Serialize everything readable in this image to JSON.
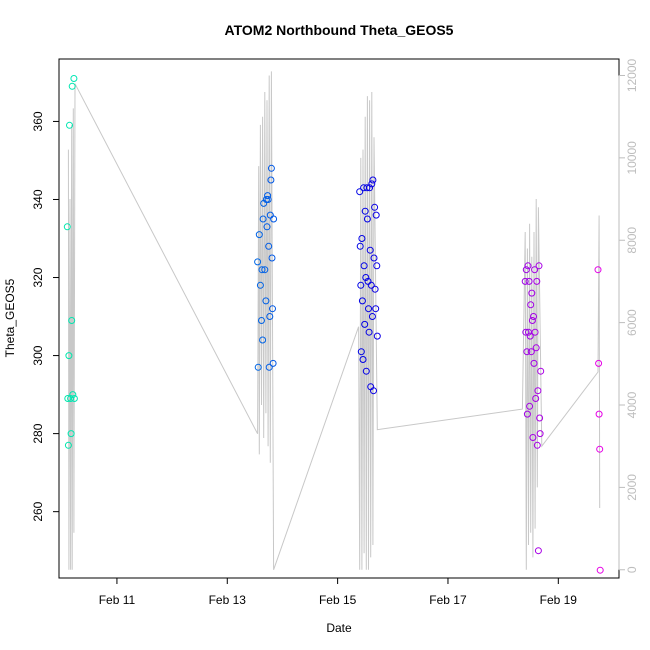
{
  "chart_data": {
    "type": "scatter",
    "title": "ATOM2 Northbound Theta_GEOS5",
    "xlabel": "Date",
    "ylabel": "Theta_GEOS5",
    "x_ticks": [
      {
        "day": 11,
        "label": "Feb 11"
      },
      {
        "day": 13,
        "label": "Feb 13"
      },
      {
        "day": 15,
        "label": "Feb 15"
      },
      {
        "day": 17,
        "label": "Feb 17"
      },
      {
        "day": 19,
        "label": "Feb 19"
      }
    ],
    "xlim": [
      9.95,
      20.1
    ],
    "ylim": [
      243,
      376
    ],
    "y_ticks": [
      260,
      280,
      300,
      320,
      340,
      360
    ],
    "y2lim": [
      -200,
      12400
    ],
    "y2_ticks": [
      0,
      2000,
      4000,
      6000,
      8000,
      10000,
      12000
    ],
    "y2_color": "#bdbdbd",
    "line_color": "#c8c8c8",
    "altitude_trace": [
      [
        10.12,
        10200
      ],
      [
        10.13,
        0
      ],
      [
        10.15,
        9000
      ],
      [
        10.16,
        0
      ],
      [
        10.18,
        10800
      ],
      [
        10.19,
        0
      ],
      [
        10.21,
        11200
      ],
      [
        10.22,
        900
      ],
      [
        10.24,
        11800
      ],
      [
        13.55,
        3300
      ],
      [
        13.57,
        9800
      ],
      [
        13.58,
        2800
      ],
      [
        13.6,
        10800
      ],
      [
        13.62,
        4000
      ],
      [
        13.64,
        11000
      ],
      [
        13.66,
        3200
      ],
      [
        13.68,
        11600
      ],
      [
        13.7,
        3800
      ],
      [
        13.72,
        11400
      ],
      [
        13.74,
        3000
      ],
      [
        13.76,
        12000
      ],
      [
        13.78,
        2600
      ],
      [
        13.8,
        12100
      ],
      [
        13.84,
        0
      ],
      [
        15.38,
        5900
      ],
      [
        15.4,
        0
      ],
      [
        15.42,
        10000
      ],
      [
        15.44,
        0
      ],
      [
        15.46,
        10200
      ],
      [
        15.48,
        400
      ],
      [
        15.5,
        11000
      ],
      [
        15.52,
        0
      ],
      [
        15.54,
        11500
      ],
      [
        15.56,
        0
      ],
      [
        15.58,
        11400
      ],
      [
        15.6,
        300
      ],
      [
        15.62,
        11600
      ],
      [
        15.64,
        600
      ],
      [
        15.66,
        10500
      ],
      [
        15.72,
        3400
      ],
      [
        18.35,
        3900
      ],
      [
        18.4,
        8200
      ],
      [
        18.42,
        0
      ],
      [
        18.44,
        7800
      ],
      [
        18.46,
        600
      ],
      [
        18.48,
        8400
      ],
      [
        18.5,
        900
      ],
      [
        18.52,
        7600
      ],
      [
        18.54,
        300
      ],
      [
        18.56,
        8200
      ],
      [
        18.58,
        1000
      ],
      [
        18.6,
        9000
      ],
      [
        18.62,
        2000
      ],
      [
        18.64,
        8800
      ],
      [
        18.7,
        3000
      ],
      [
        19.72,
        4800
      ],
      [
        19.74,
        8600
      ],
      [
        19.75,
        1500
      ]
    ],
    "points": [
      {
        "x": 10.1,
        "y": 333
      },
      {
        "x": 10.11,
        "y": 289
      },
      {
        "x": 10.12,
        "y": 277
      },
      {
        "x": 10.13,
        "y": 300
      },
      {
        "x": 10.14,
        "y": 359
      },
      {
        "x": 10.16,
        "y": 289
      },
      {
        "x": 10.17,
        "y": 280
      },
      {
        "x": 10.18,
        "y": 309
      },
      {
        "x": 10.19,
        "y": 369
      },
      {
        "x": 10.2,
        "y": 290
      },
      {
        "x": 10.22,
        "y": 371
      },
      {
        "x": 10.23,
        "y": 289
      },
      {
        "x": 13.55,
        "y": 324
      },
      {
        "x": 13.56,
        "y": 297
      },
      {
        "x": 13.58,
        "y": 331
      },
      {
        "x": 13.6,
        "y": 318
      },
      {
        "x": 13.62,
        "y": 309
      },
      {
        "x": 13.63,
        "y": 322
      },
      {
        "x": 13.64,
        "y": 304
      },
      {
        "x": 13.65,
        "y": 335
      },
      {
        "x": 13.66,
        "y": 339
      },
      {
        "x": 13.68,
        "y": 322
      },
      {
        "x": 13.7,
        "y": 314
      },
      {
        "x": 13.71,
        "y": 340
      },
      {
        "x": 13.72,
        "y": 333
      },
      {
        "x": 13.73,
        "y": 341
      },
      {
        "x": 13.74,
        "y": 340
      },
      {
        "x": 13.75,
        "y": 328
      },
      {
        "x": 13.76,
        "y": 297
      },
      {
        "x": 13.77,
        "y": 310
      },
      {
        "x": 13.78,
        "y": 336
      },
      {
        "x": 13.79,
        "y": 345
      },
      {
        "x": 13.8,
        "y": 348
      },
      {
        "x": 13.81,
        "y": 325
      },
      {
        "x": 13.82,
        "y": 312
      },
      {
        "x": 13.83,
        "y": 298
      },
      {
        "x": 13.84,
        "y": 335
      },
      {
        "x": 15.4,
        "y": 342
      },
      {
        "x": 15.41,
        "y": 328
      },
      {
        "x": 15.42,
        "y": 318
      },
      {
        "x": 15.43,
        "y": 301
      },
      {
        "x": 15.44,
        "y": 330
      },
      {
        "x": 15.45,
        "y": 314
      },
      {
        "x": 15.46,
        "y": 299
      },
      {
        "x": 15.47,
        "y": 343
      },
      {
        "x": 15.48,
        "y": 323
      },
      {
        "x": 15.49,
        "y": 308
      },
      {
        "x": 15.5,
        "y": 337
      },
      {
        "x": 15.51,
        "y": 320
      },
      {
        "x": 15.52,
        "y": 296
      },
      {
        "x": 15.53,
        "y": 343
      },
      {
        "x": 15.54,
        "y": 335
      },
      {
        "x": 15.55,
        "y": 319
      },
      {
        "x": 15.56,
        "y": 312
      },
      {
        "x": 15.57,
        "y": 306
      },
      {
        "x": 15.58,
        "y": 343
      },
      {
        "x": 15.59,
        "y": 327
      },
      {
        "x": 15.6,
        "y": 292
      },
      {
        "x": 15.61,
        "y": 318
      },
      {
        "x": 15.62,
        "y": 344
      },
      {
        "x": 15.63,
        "y": 310
      },
      {
        "x": 15.64,
        "y": 345
      },
      {
        "x": 15.65,
        "y": 291
      },
      {
        "x": 15.66,
        "y": 325
      },
      {
        "x": 15.67,
        "y": 338
      },
      {
        "x": 15.68,
        "y": 317
      },
      {
        "x": 15.69,
        "y": 312
      },
      {
        "x": 15.7,
        "y": 336
      },
      {
        "x": 15.71,
        "y": 323
      },
      {
        "x": 15.72,
        "y": 305
      },
      {
        "x": 18.4,
        "y": 319
      },
      {
        "x": 18.41,
        "y": 306
      },
      {
        "x": 18.42,
        "y": 322
      },
      {
        "x": 18.43,
        "y": 301
      },
      {
        "x": 18.44,
        "y": 285
      },
      {
        "x": 18.45,
        "y": 323
      },
      {
        "x": 18.46,
        "y": 306
      },
      {
        "x": 18.47,
        "y": 319
      },
      {
        "x": 18.48,
        "y": 287
      },
      {
        "x": 18.49,
        "y": 305
      },
      {
        "x": 18.5,
        "y": 313
      },
      {
        "x": 18.51,
        "y": 301
      },
      {
        "x": 18.52,
        "y": 316
      },
      {
        "x": 18.53,
        "y": 309
      },
      {
        "x": 18.54,
        "y": 279
      },
      {
        "x": 18.55,
        "y": 310
      },
      {
        "x": 18.56,
        "y": 298
      },
      {
        "x": 18.57,
        "y": 322
      },
      {
        "x": 18.58,
        "y": 306
      },
      {
        "x": 18.59,
        "y": 289
      },
      {
        "x": 18.6,
        "y": 302
      },
      {
        "x": 18.61,
        "y": 319
      },
      {
        "x": 18.62,
        "y": 277
      },
      {
        "x": 18.63,
        "y": 291
      },
      {
        "x": 18.64,
        "y": 250
      },
      {
        "x": 18.65,
        "y": 323
      },
      {
        "x": 18.66,
        "y": 284
      },
      {
        "x": 18.67,
        "y": 280
      },
      {
        "x": 18.68,
        "y": 296
      },
      {
        "x": 19.72,
        "y": 322
      },
      {
        "x": 19.73,
        "y": 298
      },
      {
        "x": 19.74,
        "y": 285
      },
      {
        "x": 19.75,
        "y": 276
      },
      {
        "x": 19.76,
        "y": 245
      }
    ]
  }
}
